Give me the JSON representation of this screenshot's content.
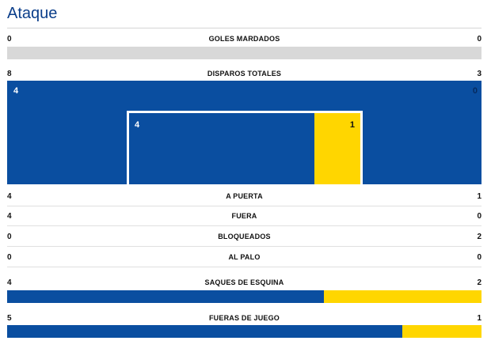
{
  "section_title": "Ataque",
  "colors": {
    "home": "#0a4ea0",
    "away": "#ffd600",
    "empty": "#d8d8d8",
    "title": "#0b3e8a"
  },
  "goles": {
    "label": "GOLES MARDADOS",
    "home": "0",
    "away": "0"
  },
  "disparos": {
    "label": "DISPAROS TOTALES",
    "home": "8",
    "away": "3",
    "outside_box": {
      "home": "4",
      "away": "0"
    },
    "inside_box": {
      "home": "4",
      "away": "1"
    }
  },
  "a_puerta": {
    "label": "A PUERTA",
    "home": "4",
    "away": "1"
  },
  "fuera": {
    "label": "FUERA",
    "home": "4",
    "away": "0"
  },
  "bloqueados": {
    "label": "BLOQUEADOS",
    "home": "0",
    "away": "2"
  },
  "al_palo": {
    "label": "AL PALO",
    "home": "0",
    "away": "0"
  },
  "saques": {
    "label": "SAQUES DE ESQUINA",
    "home": "4",
    "away": "2",
    "home_share": 0.667
  },
  "fueras_juego": {
    "label": "FUERAS DE JUEGO",
    "home": "5",
    "away": "1",
    "home_share": 0.833
  }
}
